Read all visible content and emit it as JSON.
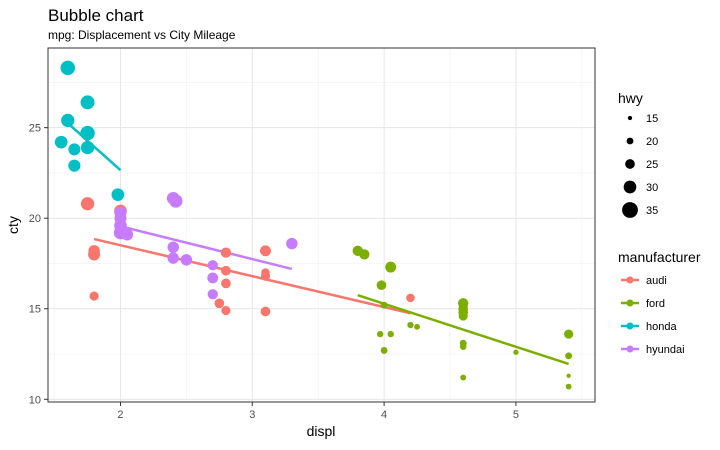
{
  "chart_data": {
    "type": "scatter",
    "title": "Bubble chart",
    "subtitle": "mpg: Displacement vs City Mileage",
    "xlabel": "displ",
    "ylabel": "cty",
    "xlim": [
      1.45,
      5.6
    ],
    "ylim": [
      9.85,
      29.4
    ],
    "x_ticks": [
      2,
      3,
      4,
      5
    ],
    "y_ticks": [
      10,
      15,
      20,
      25
    ],
    "grid": true,
    "size_legend": {
      "title": "hwy",
      "values": [
        15,
        20,
        25,
        30,
        35
      ]
    },
    "color_legend": {
      "title": "manufacturer",
      "position": "right"
    },
    "series": [
      {
        "name": "audi",
        "color": "#F8766D",
        "points": [
          {
            "x": 1.8,
            "y": 18,
            "size": 29
          },
          {
            "x": 1.8,
            "y": 18.2,
            "size": 28
          },
          {
            "x": 1.75,
            "y": 20.8,
            "size": 31
          },
          {
            "x": 2.0,
            "y": 20.4,
            "size": 30
          },
          {
            "x": 1.8,
            "y": 15.7,
            "size": 24
          },
          {
            "x": 2.8,
            "y": 18.1,
            "size": 26
          },
          {
            "x": 3.1,
            "y": 18.2,
            "size": 27
          },
          {
            "x": 2.8,
            "y": 17.1,
            "size": 25
          },
          {
            "x": 2.75,
            "y": 15.3,
            "size": 25
          },
          {
            "x": 2.8,
            "y": 14.9,
            "size": 24
          },
          {
            "x": 2.8,
            "y": 16.4,
            "size": 25
          },
          {
            "x": 3.1,
            "y": 14.85,
            "size": 25
          },
          {
            "x": 3.1,
            "y": 17.0,
            "size": 23
          },
          {
            "x": 3.1,
            "y": 16.8,
            "size": 24
          },
          {
            "x": 4.2,
            "y": 15.6,
            "size": 23
          }
        ],
        "fit": {
          "x": [
            1.8,
            4.2
          ],
          "y": [
            18.85,
            14.75
          ]
        }
      },
      {
        "name": "ford",
        "color": "#7CAE00",
        "points": [
          {
            "x": 3.8,
            "y": 18.2,
            "size": 26
          },
          {
            "x": 3.85,
            "y": 18.0,
            "size": 26
          },
          {
            "x": 4.05,
            "y": 17.3,
            "size": 27
          },
          {
            "x": 3.98,
            "y": 16.3,
            "size": 25
          },
          {
            "x": 4.0,
            "y": 15.2,
            "size": 20
          },
          {
            "x": 3.97,
            "y": 13.6,
            "size": 19
          },
          {
            "x": 4.05,
            "y": 13.6,
            "size": 19
          },
          {
            "x": 4.0,
            "y": 12.7,
            "size": 20
          },
          {
            "x": 4.2,
            "y": 14.1,
            "size": 19
          },
          {
            "x": 4.25,
            "y": 14.0,
            "size": 18
          },
          {
            "x": 4.6,
            "y": 15.3,
            "size": 26
          },
          {
            "x": 4.6,
            "y": 15.0,
            "size": 25
          },
          {
            "x": 4.6,
            "y": 14.8,
            "size": 25
          },
          {
            "x": 4.6,
            "y": 14.6,
            "size": 24
          },
          {
            "x": 4.6,
            "y": 13.1,
            "size": 20
          },
          {
            "x": 4.6,
            "y": 12.9,
            "size": 19
          },
          {
            "x": 4.6,
            "y": 13.0,
            "size": 19
          },
          {
            "x": 4.6,
            "y": 11.2,
            "size": 18
          },
          {
            "x": 5.0,
            "y": 12.6,
            "size": 17
          },
          {
            "x": 5.4,
            "y": 13.6,
            "size": 24
          },
          {
            "x": 5.4,
            "y": 12.4,
            "size": 20
          },
          {
            "x": 5.4,
            "y": 11.3,
            "size": 15
          },
          {
            "x": 5.4,
            "y": 10.7,
            "size": 18
          }
        ],
        "fit": {
          "x": [
            3.8,
            5.4
          ],
          "y": [
            15.75,
            11.95
          ]
        }
      },
      {
        "name": "honda",
        "color": "#00BFC4",
        "points": [
          {
            "x": 1.6,
            "y": 28.3,
            "size": 33
          },
          {
            "x": 1.75,
            "y": 26.4,
            "size": 32
          },
          {
            "x": 1.6,
            "y": 25.4,
            "size": 31
          },
          {
            "x": 1.75,
            "y": 24.7,
            "size": 33
          },
          {
            "x": 1.55,
            "y": 24.2,
            "size": 30
          },
          {
            "x": 1.65,
            "y": 23.8,
            "size": 29
          },
          {
            "x": 1.75,
            "y": 23.9,
            "size": 31
          },
          {
            "x": 1.65,
            "y": 22.9,
            "size": 29
          },
          {
            "x": 1.98,
            "y": 21.3,
            "size": 30
          }
        ],
        "fit": {
          "x": [
            1.6,
            2.0
          ],
          "y": [
            25.25,
            22.65
          ]
        }
      },
      {
        "name": "hyundai",
        "color": "#C77CFF",
        "points": [
          {
            "x": 2.4,
            "y": 21.1,
            "size": 30
          },
          {
            "x": 2.42,
            "y": 20.95,
            "size": 31
          },
          {
            "x": 2.0,
            "y": 20.3,
            "size": 29
          },
          {
            "x": 2.0,
            "y": 20.0,
            "size": 29
          },
          {
            "x": 2.0,
            "y": 19.6,
            "size": 30
          },
          {
            "x": 2.0,
            "y": 19.2,
            "size": 31
          },
          {
            "x": 2.05,
            "y": 19.1,
            "size": 29
          },
          {
            "x": 2.4,
            "y": 18.4,
            "size": 28
          },
          {
            "x": 2.4,
            "y": 17.8,
            "size": 28
          },
          {
            "x": 2.5,
            "y": 17.7,
            "size": 28
          },
          {
            "x": 2.7,
            "y": 17.4,
            "size": 26
          },
          {
            "x": 3.3,
            "y": 18.6,
            "size": 28
          },
          {
            "x": 2.7,
            "y": 16.7,
            "size": 27
          },
          {
            "x": 2.7,
            "y": 15.8,
            "size": 26
          }
        ],
        "fit": {
          "x": [
            2.0,
            3.3
          ],
          "y": [
            19.55,
            17.2
          ]
        }
      }
    ]
  }
}
